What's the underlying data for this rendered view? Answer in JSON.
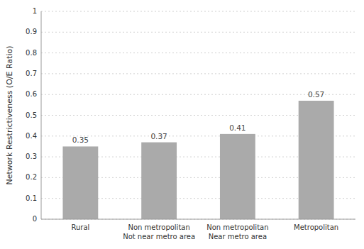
{
  "chart_data": {
    "type": "bar",
    "ylabel": "Network Restrictiveness (O/E Ratio)",
    "categories": [
      "Rural",
      "Non metropolitan\nNot near metro area",
      "Non metropolitan\nNear metro area",
      "Metropolitan"
    ],
    "values": [
      0.35,
      0.37,
      0.41,
      0.57
    ],
    "color": "#aaaaaa",
    "ylim": [
      0,
      1.0
    ],
    "yticks": [
      0,
      0.1,
      0.2,
      0.3,
      0.4,
      0.5,
      0.6,
      0.7,
      0.8,
      0.9,
      1
    ],
    "grid": true,
    "data_labels": true
  }
}
